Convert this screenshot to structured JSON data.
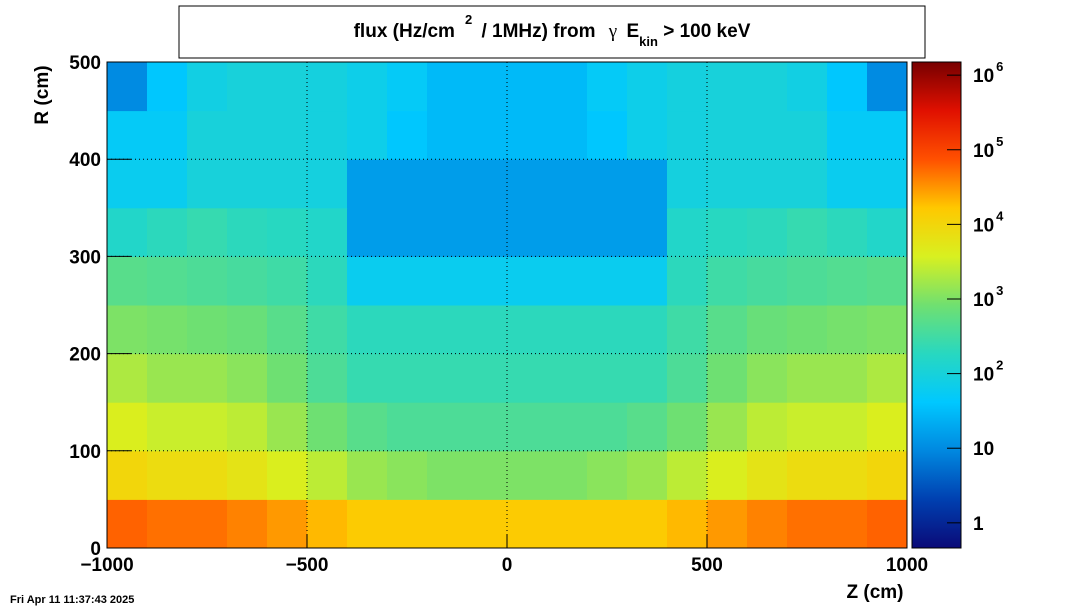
{
  "chart_data": {
    "type": "heatmap",
    "title": [
      "flux (Hz/cm",
      "2",
      " / 1MHz) from ",
      "γ",
      " E",
      "kin",
      " > 100 keV"
    ],
    "x_label": "Z (cm)",
    "y_label": "R (cm)",
    "timestamp": "Fri Apr 11 11:37:43 2025",
    "xbins": [
      -1000,
      -900,
      -800,
      -700,
      -600,
      -500,
      -400,
      -300,
      -200,
      -100,
      0,
      100,
      200,
      300,
      400,
      500,
      600,
      700,
      800,
      900,
      1000
    ],
    "ybins": [
      0,
      50,
      100,
      150,
      200,
      250,
      300,
      350,
      400,
      450,
      500
    ],
    "values": [
      [
        60000,
        50000,
        50000,
        40000,
        30000,
        20000,
        15000,
        15000,
        15000,
        15000,
        15000,
        15000,
        15000,
        15000,
        20000,
        30000,
        40000,
        50000,
        50000,
        60000
      ],
      [
        10000,
        8000,
        8000,
        6000,
        4000,
        2500,
        1500,
        1200,
        1000,
        1000,
        1000,
        1000,
        1200,
        1500,
        2500,
        4000,
        6000,
        8000,
        8000,
        10000
      ],
      [
        4000,
        3000,
        3000,
        2500,
        1500,
        800,
        500,
        400,
        400,
        400,
        400,
        400,
        400,
        500,
        800,
        1500,
        2500,
        3000,
        3000,
        4000
      ],
      [
        2000,
        1500,
        1500,
        1200,
        800,
        400,
        250,
        250,
        250,
        250,
        250,
        250,
        250,
        250,
        400,
        800,
        1200,
        1500,
        1500,
        2000
      ],
      [
        1000,
        900,
        800,
        700,
        500,
        300,
        200,
        200,
        200,
        200,
        200,
        200,
        200,
        200,
        300,
        500,
        700,
        800,
        900,
        1000
      ],
      [
        500,
        450,
        400,
        350,
        300,
        200,
        60,
        60,
        60,
        60,
        60,
        60,
        60,
        60,
        200,
        300,
        350,
        400,
        450,
        500
      ],
      [
        150,
        200,
        250,
        200,
        180,
        150,
        15,
        15,
        15,
        15,
        15,
        15,
        15,
        15,
        150,
        180,
        200,
        250,
        200,
        150
      ],
      [
        60,
        60,
        100,
        100,
        100,
        90,
        15,
        15,
        15,
        15,
        15,
        15,
        15,
        15,
        90,
        100,
        100,
        100,
        60,
        60
      ],
      [
        50,
        50,
        100,
        100,
        100,
        90,
        70,
        40,
        30,
        30,
        30,
        30,
        40,
        70,
        90,
        100,
        100,
        100,
        50,
        50
      ],
      [
        10,
        40,
        80,
        100,
        100,
        90,
        70,
        50,
        30,
        30,
        30,
        30,
        50,
        70,
        90,
        100,
        100,
        80,
        40,
        10
      ]
    ],
    "xlim": [
      -1000,
      1000
    ],
    "ylim": [
      0,
      500
    ],
    "zlim": [
      0.46,
      1500000
    ],
    "zlog": true,
    "xticks": [
      {
        "value": -1000,
        "label": "−1000"
      },
      {
        "value": -500,
        "label": "−500"
      },
      0,
      500,
      1000
    ],
    "yticks": [
      0,
      100,
      200,
      300,
      400,
      500
    ],
    "zticks": [
      1,
      10,
      {
        "value": 100,
        "label": "10",
        "exponent": "2"
      },
      {
        "value": 1000,
        "label": "10",
        "exponent": "3"
      },
      {
        "value": 10000,
        "label": "10",
        "exponent": "4"
      },
      {
        "value": 100000,
        "label": "10",
        "exponent": "5"
      },
      {
        "value": 1000000,
        "label": "10",
        "exponent": "6"
      }
    ],
    "grid": true,
    "palette": [
      "#0a0a78",
      "#0040b0",
      "#0088e0",
      "#00c8ff",
      "#28d8c0",
      "#70e070",
      "#d8f020",
      "#ffc800",
      "#ff5000",
      "#e01000",
      "#780000"
    ]
  }
}
